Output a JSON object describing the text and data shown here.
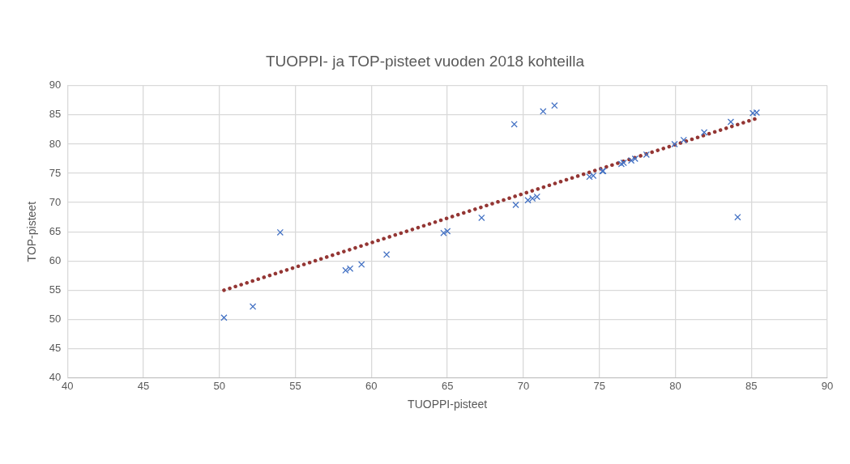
{
  "chart_data": {
    "type": "scatter",
    "title": "TUOPPI- ja TOP-pisteet vuoden 2018 kohteilla",
    "xlabel": "TUOPPI-pisteet",
    "ylabel": "TOP-pisteet",
    "xlim": [
      40,
      90
    ],
    "xticks": [
      40,
      45,
      50,
      55,
      60,
      65,
      70,
      75,
      80,
      85,
      90
    ],
    "ylim": [
      40,
      90
    ],
    "yticks": [
      40,
      45,
      50,
      55,
      60,
      65,
      70,
      75,
      80,
      85,
      90
    ],
    "grid": true,
    "legend": false,
    "marker": "cross",
    "series": [
      {
        "type": "scatter",
        "color": "#4472c4",
        "x": [
          50.3,
          52.2,
          54.0,
          58.3,
          58.6,
          59.35,
          61.0,
          64.75,
          65.0,
          67.25,
          69.4,
          71.3,
          72.05,
          69.5,
          70.3,
          70.6,
          70.9,
          74.35,
          74.6,
          75.2,
          75.25,
          76.45,
          76.6,
          77.1,
          77.35,
          78.1,
          79.95,
          80.55,
          81.9,
          83.65,
          85.1,
          85.35,
          84.1
        ],
        "values": [
          50.3,
          52.2,
          64.9,
          58.4,
          58.7,
          59.4,
          61.1,
          64.8,
          65.1,
          67.4,
          83.4,
          85.6,
          86.6,
          69.6,
          70.4,
          70.7,
          71.0,
          74.4,
          74.6,
          75.4,
          75.4,
          76.6,
          76.8,
          77.2,
          77.5,
          78.2,
          80.0,
          80.7,
          82.0,
          83.8,
          85.3,
          85.4,
          67.5
        ]
      },
      {
        "type": "line",
        "color": "#943634",
        "line_style": "dotted",
        "marker": "none",
        "x": [
          50.3,
          85.35
        ],
        "values": [
          55.0,
          84.4
        ]
      }
    ]
  }
}
